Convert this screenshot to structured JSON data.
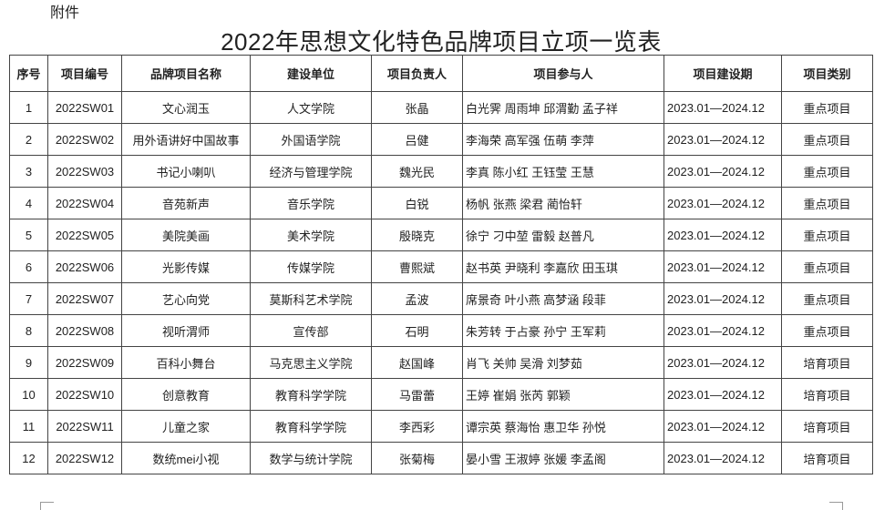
{
  "attachment_label": "附件",
  "title": "2022年思想文化特色品牌项目立项一览表",
  "table": {
    "headers": [
      "序号",
      "项目编号",
      "品牌项目名称",
      "建设单位",
      "项目负责人",
      "项目参与人",
      "项目建设期",
      "项目类别"
    ],
    "rows": [
      [
        "1",
        "2022SW01",
        "文心润玉",
        "人文学院",
        "张晶",
        "白光霁 周雨坤 邱渭勤 孟子祥",
        "2023.01—2024.12",
        "重点项目"
      ],
      [
        "2",
        "2022SW02",
        "用外语讲好中国故事",
        "外国语学院",
        "吕健",
        "李海荣 高军强 伍萌 李萍",
        "2023.01—2024.12",
        "重点项目"
      ],
      [
        "3",
        "2022SW03",
        "书记小喇叭",
        "经济与管理学院",
        "魏光民",
        "李真 陈小红 王钰莹 王慧",
        "2023.01—2024.12",
        "重点项目"
      ],
      [
        "4",
        "2022SW04",
        "音苑新声",
        "音乐学院",
        "白锐",
        "杨帆 张燕 梁君 蔺怡轩",
        "2023.01—2024.12",
        "重点项目"
      ],
      [
        "5",
        "2022SW05",
        "美院美画",
        "美术学院",
        "殷晓克",
        "徐宁 刁中堃 雷毅 赵普凡",
        "2023.01—2024.12",
        "重点项目"
      ],
      [
        "6",
        "2022SW06",
        "光影传媒",
        "传媒学院",
        "曹熙斌",
        "赵书英 尹晓利 李嘉欣 田玉琪",
        "2023.01—2024.12",
        "重点项目"
      ],
      [
        "7",
        "2022SW07",
        "艺心向党",
        "莫斯科艺术学院",
        "孟波",
        "席景奇 叶小燕 高梦涵 段菲",
        "2023.01—2024.12",
        "重点项目"
      ],
      [
        "8",
        "2022SW08",
        "视听渭师",
        "宣传部",
        "石明",
        "朱芳转 于占豪 孙宁 王军莉",
        "2023.01—2024.12",
        "重点项目"
      ],
      [
        "9",
        "2022SW09",
        "百科小舞台",
        "马克思主义学院",
        "赵国峰",
        "肖飞 关帅 吴滑 刘梦茹",
        "2023.01—2024.12",
        "培育项目"
      ],
      [
        "10",
        "2022SW10",
        "创意教育",
        "教育科学学院",
        "马雷蕾",
        "王婷 崔娟 张芮 郭颖",
        "2023.01—2024.12",
        "培育项目"
      ],
      [
        "11",
        "2022SW11",
        "儿童之家",
        "教育科学学院",
        "李西彩",
        "谭宗英 蔡海怡 惠卫华 孙悦",
        "2023.01—2024.12",
        "培育项目"
      ],
      [
        "12",
        "2022SW12",
        "数统mei小视",
        "数学与统计学院",
        "张菊梅",
        "晏小雪 王淑婷 张媛 李孟阁",
        "2023.01—2024.12",
        "培育项目"
      ]
    ]
  }
}
